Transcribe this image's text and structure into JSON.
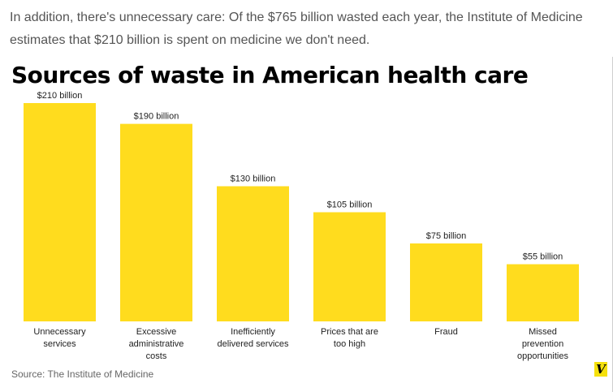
{
  "article": {
    "intro": "In addition, there's unnecessary care: Of the $765 billion wasted each year, the Institute of Medicine estimates that $210 billion is spent on medicine we don't need."
  },
  "chart_data": {
    "type": "bar",
    "title": "Sources of waste in American health care",
    "categories": [
      [
        "Unnecessary",
        "services"
      ],
      [
        "Excessive",
        "administrative",
        "costs"
      ],
      [
        "Inefficiently",
        "delivered services"
      ],
      [
        "Prices that are",
        "too high"
      ],
      [
        "Fraud"
      ],
      [
        "Missed",
        "prevention",
        "opportunities"
      ]
    ],
    "values": [
      210,
      190,
      130,
      105,
      75,
      55
    ],
    "value_labels": [
      "$210 billion",
      "$190 billion",
      "$130 billion",
      "$105 billion",
      "$75 billion",
      "$55 billion"
    ],
    "ylim": [
      0,
      210
    ],
    "grid": false,
    "bar_color": "#ffdc1e",
    "source": "Source: The Institute of Medicine"
  },
  "branding": {
    "logo_letter": "V",
    "logo_color": "#f5e10c"
  }
}
